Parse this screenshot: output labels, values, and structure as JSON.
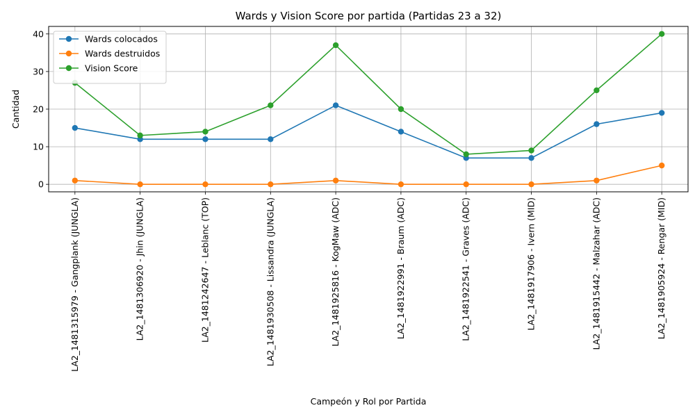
{
  "chart_data": {
    "type": "line",
    "title": "Wards y Vision Score por partida (Partidas 23 a 32)",
    "xlabel": "Campeón y Rol por Partida",
    "ylabel": "Cantidad",
    "ylim": [
      -2,
      42
    ],
    "yticks": [
      0,
      10,
      20,
      30,
      40
    ],
    "grid": true,
    "legend_position": "top-left",
    "categories": [
      "LA2_1481315979 - Gangplank (JUNGLA)",
      "LA2_1481306920 - Jhin (JUNGLA)",
      "LA2_1481242647 - Leblanc (TOP)",
      "LA2_1481930508 - Lissandra (JUNGLA)",
      "LA2_1481925816 - KogMaw (ADC)",
      "LA2_1481922991 - Braum (ADC)",
      "LA2_1481922541 - Graves (ADC)",
      "LA2_1481917906 - Ivern (MID)",
      "LA2_1481915442 - Malzahar (ADC)",
      "LA2_1481905924 - Rengar (MID)"
    ],
    "series": [
      {
        "name": "Wards colocados",
        "color": "#1f77b4",
        "values": [
          15,
          12,
          12,
          12,
          21,
          14,
          7,
          7,
          16,
          19
        ]
      },
      {
        "name": "Wards destruidos",
        "color": "#ff7f0e",
        "values": [
          1,
          0,
          0,
          0,
          1,
          0,
          0,
          0,
          1,
          5
        ]
      },
      {
        "name": "Vision Score",
        "color": "#2ca02c",
        "values": [
          27,
          13,
          14,
          21,
          37,
          20,
          8,
          9,
          25,
          40
        ]
      }
    ]
  }
}
